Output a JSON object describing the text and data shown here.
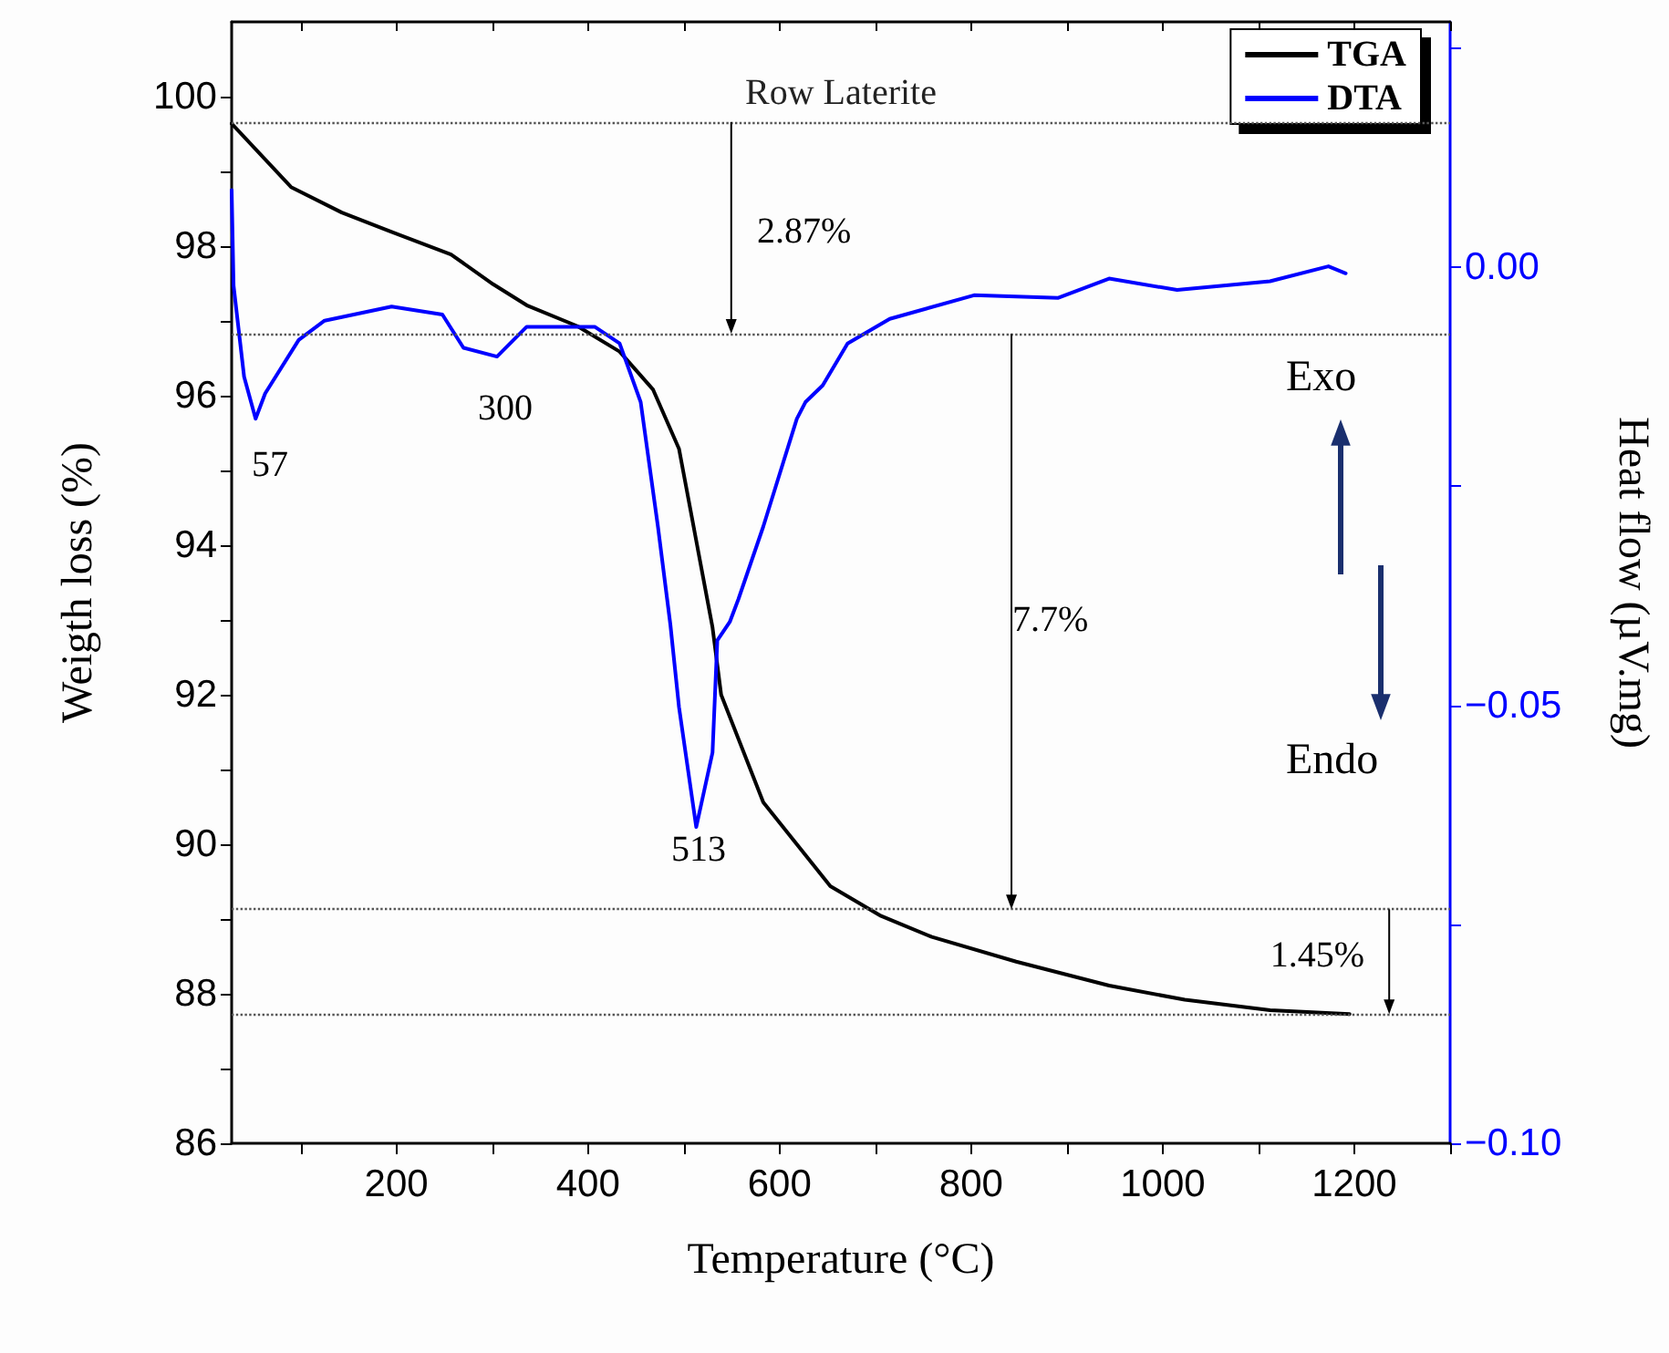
{
  "chart_data": {
    "type": "line",
    "xlabel": "Temperature (°C)",
    "ylabel": "Weigth loss (%)",
    "y2label": "Heat flow (µV.mg)",
    "xlim": [
      28,
      1300
    ],
    "xticks": [
      {
        "value": 100,
        "label": null
      },
      200,
      {
        "value": 300,
        "label": null
      },
      400,
      {
        "value": 500,
        "label": null
      },
      600,
      {
        "value": 700,
        "label": null
      },
      800,
      {
        "value": 900,
        "label": null
      },
      1000,
      {
        "value": 1100,
        "label": null
      },
      1200,
      {
        "value": 1300,
        "label": null
      }
    ],
    "ylim": [
      86,
      101
    ],
    "yticks": [
      86,
      {
        "value": 87,
        "label": null
      },
      88,
      {
        "value": 89,
        "label": null
      },
      90,
      {
        "value": 91,
        "label": null
      },
      92,
      {
        "value": 93,
        "label": null
      },
      94,
      {
        "value": 95,
        "label": null
      },
      96,
      {
        "value": 97,
        "label": null
      },
      98,
      {
        "value": 99,
        "label": null
      },
      100
    ],
    "y2lim": [
      -0.1,
      0.028
    ],
    "y2ticks": [
      {
        "value": -0.1,
        "label": "−0.10"
      },
      {
        "value": -0.075,
        "label": null
      },
      {
        "value": -0.05,
        "label": "−0.05"
      },
      {
        "value": -0.025,
        "label": null
      },
      {
        "value": 0,
        "label": "0.00"
      },
      {
        "value": 0.025,
        "label": null
      }
    ],
    "grid": false,
    "legend": "top right",
    "marker": "none",
    "line_style": "solid",
    "series": [
      {
        "name": "TGA",
        "color": "#000000",
        "x": [
          28,
          90,
          143,
          195,
          257,
          301,
          336,
          389,
          433,
          468,
          495,
          530,
          539,
          583,
          618,
          653,
          706,
          759,
          847,
          944,
          1023,
          1112,
          1195
        ],
        "values": [
          99.64,
          98.79,
          98.45,
          98.19,
          97.89,
          97.49,
          97.21,
          96.93,
          96.59,
          96.08,
          95.29,
          92.9,
          92.0,
          90.56,
          90.0,
          89.44,
          89.04,
          88.76,
          88.43,
          88.11,
          87.92,
          87.78,
          87.73
        ]
      },
      {
        "name": "DTA",
        "color": "#0000ff",
        "axis": "y2",
        "x": [
          28,
          30,
          41,
          53,
          63,
          98,
          125,
          195,
          248,
          270,
          305,
          336,
          407,
          433,
          455,
          473,
          486,
          495,
          513,
          530,
          535,
          548,
          557,
          583,
          618,
          627,
          645,
          671,
          715,
          803,
          891,
          944,
          1015,
          1112,
          1173,
          1191
        ],
        "values": [
          0.0088,
          -0.0021,
          -0.0125,
          -0.0173,
          -0.0144,
          -0.0083,
          -0.0061,
          -0.0045,
          -0.0054,
          -0.0092,
          -0.0102,
          -0.0068,
          -0.0068,
          -0.0087,
          -0.0154,
          -0.0296,
          -0.0408,
          -0.0502,
          -0.0639,
          -0.0554,
          -0.0426,
          -0.0405,
          -0.0379,
          -0.0296,
          -0.0173,
          -0.0154,
          -0.0135,
          -0.0087,
          -0.0059,
          -0.0032,
          -0.0035,
          -0.0013,
          -0.0026,
          -0.0016,
          0.0001,
          -0.0007
        ]
      }
    ],
    "ref_lines": [
      {
        "axis": "y",
        "value": 99.66,
        "label": "Row Laterite",
        "color": "#555555",
        "line_style": "dotted"
      },
      {
        "axis": "y",
        "value": 96.83,
        "color": "#555555",
        "line_style": "dotted"
      },
      {
        "axis": "y",
        "value": 89.13,
        "color": "#555555",
        "line_style": "dotted"
      },
      {
        "axis": "y",
        "value": 87.73,
        "color": "#555555",
        "line_style": "dotted"
      }
    ],
    "annotations": [
      "2.87%",
      "7.7%",
      "1.45%",
      "57",
      "300",
      "513",
      "Exo",
      "Endo"
    ]
  }
}
